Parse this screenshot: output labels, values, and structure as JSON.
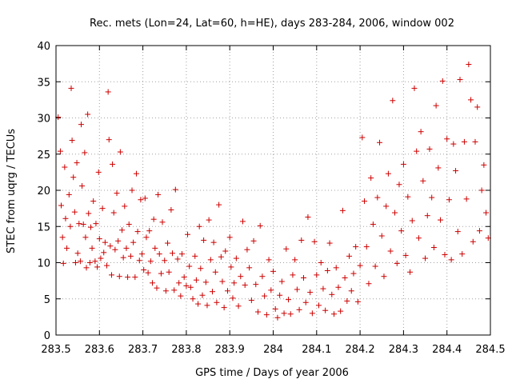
{
  "chart_data": {
    "type": "scatter",
    "title": "Rec. mets (Lon=24, Lat=60, h=HE), days 283-284, 2006, window 002",
    "xlabel": "GPS time / Days of year 2006",
    "ylabel": "STEC from uqrg / TECUs",
    "xlim": [
      283.5,
      284.5
    ],
    "ylim": [
      0,
      40
    ],
    "grid": true,
    "marker": "+",
    "color": "#cc0000",
    "x_ticks": [
      "283.5",
      "283.6",
      "283.7",
      "283.8",
      "283.9",
      "284",
      "284.1",
      "284.2",
      "284.3",
      "284.4",
      "284.5"
    ],
    "y_ticks": [
      "0",
      "5",
      "10",
      "15",
      "20",
      "25",
      "30",
      "35",
      "40"
    ],
    "series": [
      {
        "points": [
          [
            283.505,
            30.1
          ],
          [
            283.51,
            25.4
          ],
          [
            283.512,
            17.9
          ],
          [
            283.515,
            13.5
          ],
          [
            283.517,
            9.9
          ],
          [
            283.52,
            23.2
          ],
          [
            283.522,
            16.1
          ],
          [
            283.525,
            12.0
          ],
          [
            283.53,
            19.4
          ],
          [
            283.533,
            15.0
          ],
          [
            283.535,
            34.1
          ],
          [
            283.537,
            26.9
          ],
          [
            283.54,
            21.8
          ],
          [
            283.543,
            17.0
          ],
          [
            283.545,
            10.0
          ],
          [
            283.548,
            23.8
          ],
          [
            283.55,
            11.3
          ],
          [
            283.553,
            15.4
          ],
          [
            283.556,
            10.2
          ],
          [
            283.558,
            29.1
          ],
          [
            283.56,
            20.6
          ],
          [
            283.563,
            15.3
          ],
          [
            283.566,
            25.2
          ],
          [
            283.568,
            13.5
          ],
          [
            283.57,
            9.3
          ],
          [
            283.573,
            30.5
          ],
          [
            283.575,
            16.8
          ],
          [
            283.578,
            10.0
          ],
          [
            283.58,
            14.9
          ],
          [
            283.583,
            12.0
          ],
          [
            283.586,
            18.5
          ],
          [
            283.59,
            10.2
          ],
          [
            283.592,
            15.4
          ],
          [
            283.595,
            9.4
          ],
          [
            283.598,
            22.5
          ],
          [
            283.6,
            13.3
          ],
          [
            283.603,
            10.6
          ],
          [
            283.607,
            17.5
          ],
          [
            283.61,
            11.4
          ],
          [
            283.613,
            12.8
          ],
          [
            283.617,
            9.6
          ],
          [
            283.62,
            33.6
          ],
          [
            283.622,
            27.0
          ],
          [
            283.625,
            12.3
          ],
          [
            283.628,
            8.3
          ],
          [
            283.63,
            23.6
          ],
          [
            283.633,
            16.9
          ],
          [
            283.636,
            11.8
          ],
          [
            283.64,
            19.6
          ],
          [
            283.643,
            13.0
          ],
          [
            283.646,
            8.1
          ],
          [
            283.648,
            25.3
          ],
          [
            283.652,
            14.5
          ],
          [
            283.655,
            10.7
          ],
          [
            283.658,
            17.8
          ],
          [
            283.662,
            12.0
          ],
          [
            283.665,
            8.0
          ],
          [
            283.668,
            15.3
          ],
          [
            283.672,
            10.9
          ],
          [
            283.675,
            20.0
          ],
          [
            283.678,
            12.8
          ],
          [
            283.682,
            8.0
          ],
          [
            283.685,
            22.3
          ],
          [
            283.688,
            14.3
          ],
          [
            283.692,
            10.3
          ],
          [
            283.695,
            18.7
          ],
          [
            283.698,
            11.2
          ],
          [
            283.702,
            9.0
          ],
          [
            283.705,
            18.9
          ],
          [
            283.708,
            13.5
          ],
          [
            283.712,
            8.6
          ],
          [
            283.715,
            14.4
          ],
          [
            283.718,
            10.2
          ],
          [
            283.722,
            7.2
          ],
          [
            283.725,
            16.0
          ],
          [
            283.728,
            12.0
          ],
          [
            283.732,
            6.5
          ],
          [
            283.735,
            19.4
          ],
          [
            283.738,
            11.2
          ],
          [
            283.742,
            8.5
          ],
          [
            283.745,
            15.6
          ],
          [
            283.75,
            10.3
          ],
          [
            283.753,
            6.1
          ],
          [
            283.757,
            12.7
          ],
          [
            283.76,
            8.7
          ],
          [
            283.765,
            17.3
          ],
          [
            283.768,
            11.3
          ],
          [
            283.772,
            6.2
          ],
          [
            283.775,
            20.1
          ],
          [
            283.78,
            10.5
          ],
          [
            283.783,
            7.2
          ],
          [
            283.787,
            5.4
          ],
          [
            283.79,
            11.2
          ],
          [
            283.795,
            8.0
          ],
          [
            283.8,
            6.8
          ],
          [
            283.803,
            13.9
          ],
          [
            283.807,
            9.5
          ],
          [
            283.81,
            6.6
          ],
          [
            283.815,
            5.0
          ],
          [
            283.82,
            10.9
          ],
          [
            283.823,
            7.6
          ],
          [
            283.827,
            4.3
          ],
          [
            283.83,
            15.0
          ],
          [
            283.833,
            9.2
          ],
          [
            283.837,
            5.5
          ],
          [
            283.84,
            13.1
          ],
          [
            283.845,
            7.3
          ],
          [
            283.848,
            4.1
          ],
          [
            283.852,
            15.9
          ],
          [
            283.856,
            10.4
          ],
          [
            283.86,
            6.0
          ],
          [
            283.863,
            12.8
          ],
          [
            283.867,
            8.7
          ],
          [
            283.87,
            4.5
          ],
          [
            283.875,
            18.0
          ],
          [
            283.88,
            10.8
          ],
          [
            283.883,
            7.4
          ],
          [
            283.887,
            3.8
          ],
          [
            283.89,
            11.6
          ],
          [
            283.895,
            6.1
          ],
          [
            283.9,
            13.5
          ],
          [
            283.903,
            9.4
          ],
          [
            283.907,
            5.1
          ],
          [
            283.91,
            7.2
          ],
          [
            283.915,
            10.6
          ],
          [
            283.92,
            4.0
          ],
          [
            283.925,
            8.1
          ],
          [
            283.93,
            15.7
          ],
          [
            283.935,
            6.9
          ],
          [
            283.94,
            11.8
          ],
          [
            283.945,
            9.3
          ],
          [
            283.95,
            4.8
          ],
          [
            283.955,
            13.0
          ],
          [
            283.96,
            7.0
          ],
          [
            283.965,
            3.2
          ],
          [
            283.97,
            15.1
          ],
          [
            283.975,
            8.1
          ],
          [
            283.98,
            5.4
          ],
          [
            283.985,
            2.8
          ],
          [
            283.99,
            10.4
          ],
          [
            283.995,
            6.2
          ],
          [
            284.0,
            8.8
          ],
          [
            284.005,
            3.6
          ],
          [
            284.01,
            2.4
          ],
          [
            284.015,
            5.5
          ],
          [
            284.02,
            7.4
          ],
          [
            284.025,
            3.0
          ],
          [
            284.03,
            11.9
          ],
          [
            284.035,
            4.9
          ],
          [
            284.04,
            2.9
          ],
          [
            284.045,
            8.3
          ],
          [
            284.05,
            10.4
          ],
          [
            284.055,
            6.3
          ],
          [
            284.06,
            3.5
          ],
          [
            284.065,
            13.1
          ],
          [
            284.07,
            7.9
          ],
          [
            284.075,
            4.5
          ],
          [
            284.08,
            16.3
          ],
          [
            284.085,
            5.9
          ],
          [
            284.09,
            3.0
          ],
          [
            284.095,
            12.9
          ],
          [
            284.1,
            8.3
          ],
          [
            284.105,
            4.1
          ],
          [
            284.11,
            10.0
          ],
          [
            284.115,
            6.4
          ],
          [
            284.12,
            3.4
          ],
          [
            284.125,
            8.9
          ],
          [
            284.13,
            12.7
          ],
          [
            284.135,
            5.6
          ],
          [
            284.14,
            2.9
          ],
          [
            284.145,
            9.3
          ],
          [
            284.15,
            6.6
          ],
          [
            284.155,
            3.3
          ],
          [
            284.16,
            17.2
          ],
          [
            284.165,
            7.9
          ],
          [
            284.17,
            4.7
          ],
          [
            284.175,
            10.9
          ],
          [
            284.18,
            6.1
          ],
          [
            284.185,
            8.5
          ],
          [
            284.19,
            12.2
          ],
          [
            284.195,
            4.6
          ],
          [
            284.2,
            9.6
          ],
          [
            284.205,
            27.3
          ],
          [
            284.21,
            18.5
          ],
          [
            284.215,
            12.2
          ],
          [
            284.22,
            7.1
          ],
          [
            284.225,
            21.7
          ],
          [
            284.23,
            15.3
          ],
          [
            284.235,
            9.5
          ],
          [
            284.24,
            19.0
          ],
          [
            284.245,
            26.6
          ],
          [
            284.25,
            13.7
          ],
          [
            284.255,
            8.1
          ],
          [
            284.26,
            17.8
          ],
          [
            284.265,
            22.3
          ],
          [
            284.27,
            11.6
          ],
          [
            284.275,
            32.4
          ],
          [
            284.28,
            16.9
          ],
          [
            284.285,
            9.9
          ],
          [
            284.29,
            20.8
          ],
          [
            284.295,
            14.4
          ],
          [
            284.3,
            23.6
          ],
          [
            284.305,
            11.0
          ],
          [
            284.31,
            19.1
          ],
          [
            284.315,
            8.7
          ],
          [
            284.32,
            15.8
          ],
          [
            284.325,
            34.1
          ],
          [
            284.33,
            25.4
          ],
          [
            284.335,
            13.4
          ],
          [
            284.34,
            28.1
          ],
          [
            284.345,
            21.3
          ],
          [
            284.35,
            10.6
          ],
          [
            284.355,
            16.5
          ],
          [
            284.36,
            25.7
          ],
          [
            284.365,
            19.0
          ],
          [
            284.37,
            12.1
          ],
          [
            284.375,
            31.7
          ],
          [
            284.38,
            23.1
          ],
          [
            284.385,
            15.9
          ],
          [
            284.39,
            35.1
          ],
          [
            284.395,
            11.1
          ],
          [
            284.4,
            27.1
          ],
          [
            284.405,
            18.7
          ],
          [
            284.41,
            10.4
          ],
          [
            284.415,
            26.4
          ],
          [
            284.42,
            22.7
          ],
          [
            284.425,
            14.3
          ],
          [
            284.43,
            35.3
          ],
          [
            284.435,
            11.2
          ],
          [
            284.44,
            26.7
          ],
          [
            284.445,
            18.8
          ],
          [
            284.45,
            37.4
          ],
          [
            284.455,
            32.5
          ],
          [
            284.46,
            12.9
          ],
          [
            284.465,
            26.7
          ],
          [
            284.47,
            31.5
          ],
          [
            284.475,
            14.4
          ],
          [
            284.48,
            20.0
          ],
          [
            284.485,
            23.5
          ],
          [
            284.49,
            16.9
          ],
          [
            284.495,
            13.4
          ]
        ]
      }
    ]
  }
}
